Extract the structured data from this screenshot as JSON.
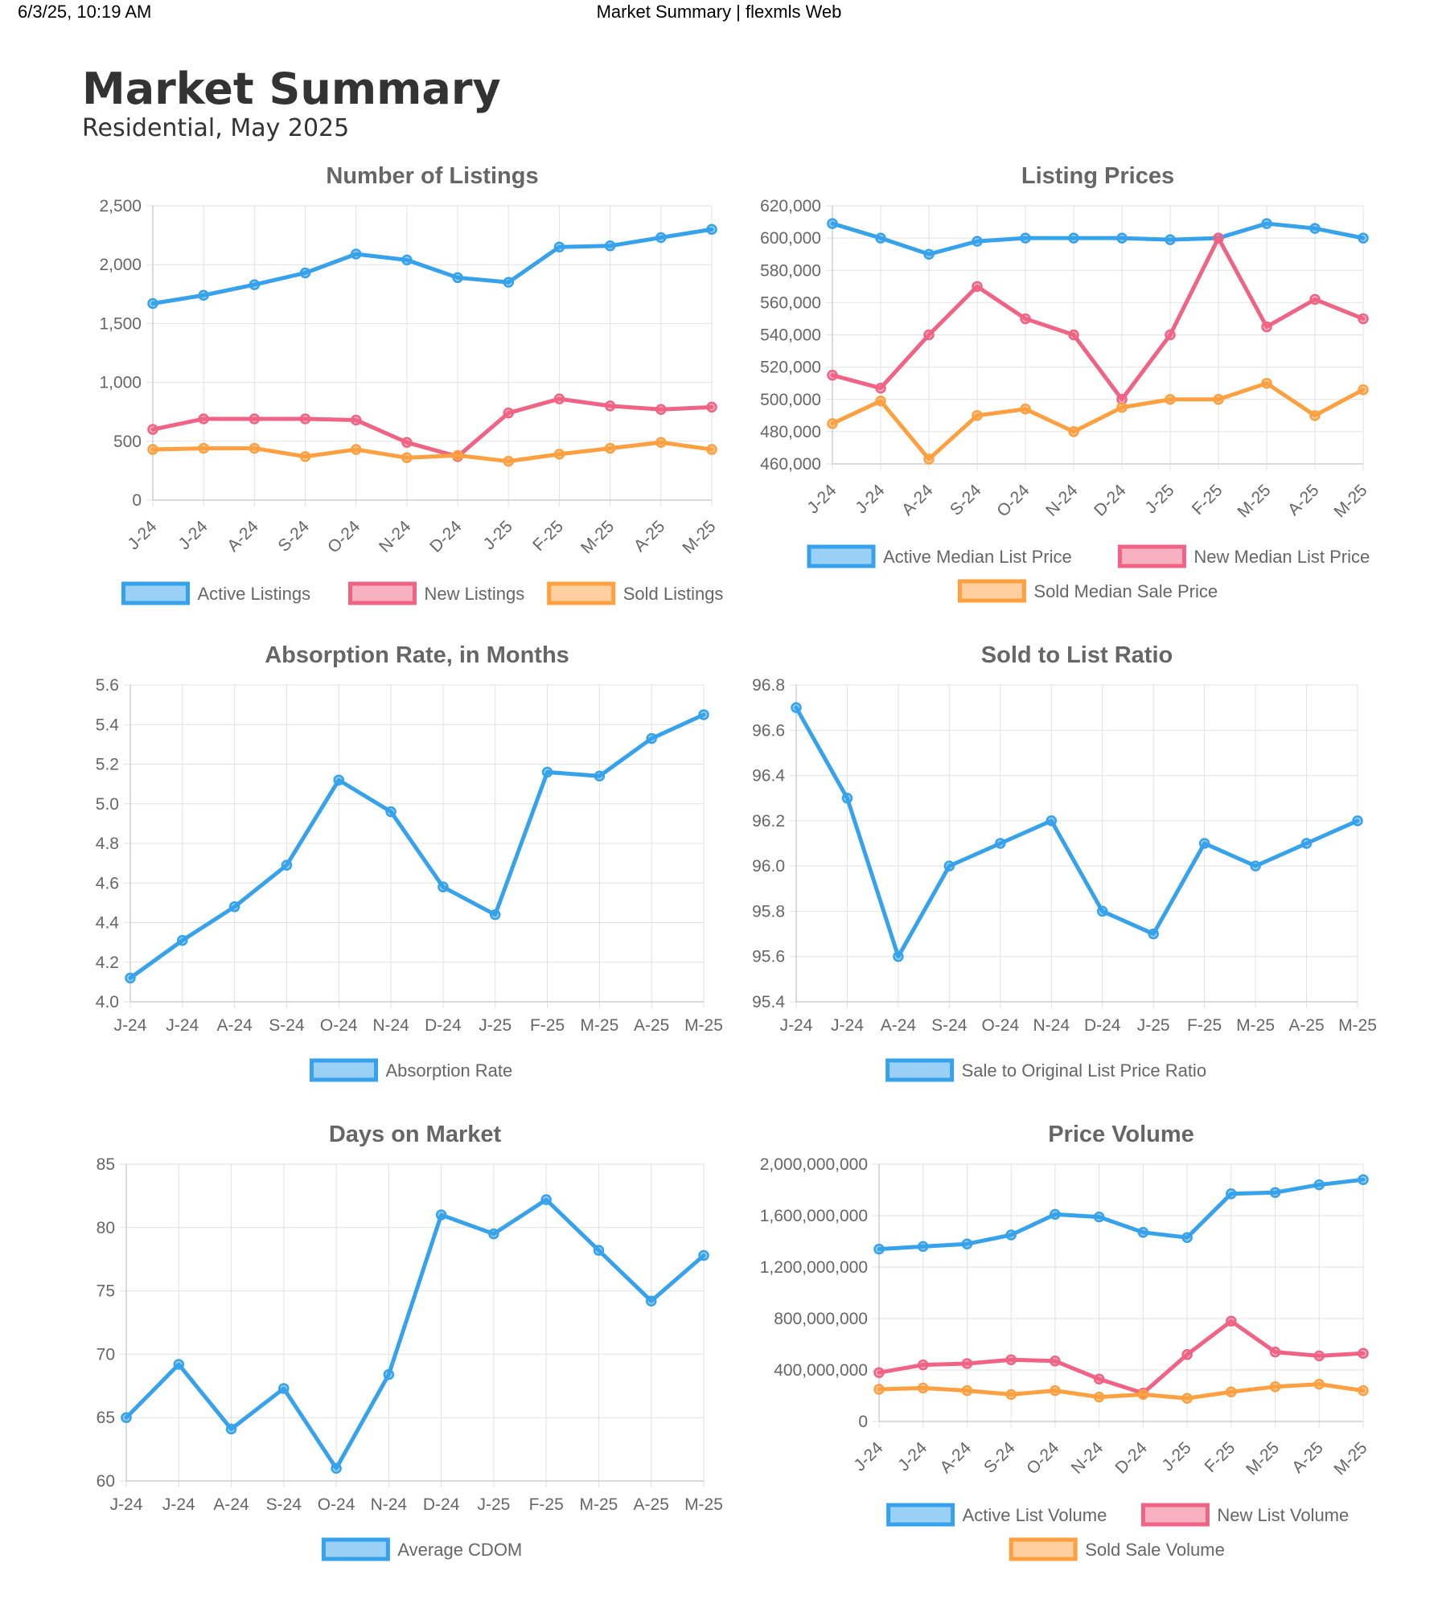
{
  "print_header": {
    "datetime": "6/3/25, 10:19 AM",
    "title": "Market Summary | flexmls Web"
  },
  "report": {
    "title": "Market Summary",
    "subtitle": "Residential, May 2025"
  },
  "colors": {
    "blue": "#36A2EB",
    "pink": "#F06384",
    "orange": "#FFA040"
  },
  "chart_data": [
    {
      "type": "line",
      "title": "Number of Listings",
      "categories": [
        "J-24",
        "J-24",
        "A-24",
        "S-24",
        "O-24",
        "N-24",
        "D-24",
        "J-25",
        "F-25",
        "M-25",
        "A-25",
        "M-25"
      ],
      "ylim": [
        0,
        2500
      ],
      "yticks": [
        0,
        500,
        1000,
        1500,
        2000,
        2500
      ],
      "tick_labels_rotated": true,
      "series": [
        {
          "name": "Active Listings",
          "color": "#36A2EB",
          "values": [
            1670,
            1740,
            1830,
            1930,
            2090,
            2040,
            1890,
            1850,
            2150,
            2160,
            2230,
            2300
          ]
        },
        {
          "name": "New Listings",
          "color": "#F06384",
          "values": [
            600,
            690,
            690,
            690,
            680,
            490,
            370,
            740,
            860,
            800,
            770,
            790
          ]
        },
        {
          "name": "Sold Listings",
          "color": "#FFA040",
          "values": [
            430,
            440,
            440,
            370,
            430,
            360,
            380,
            330,
            390,
            440,
            490,
            430
          ]
        }
      ],
      "legend": "bottom"
    },
    {
      "type": "line",
      "title": "Listing Prices",
      "categories": [
        "J-24",
        "J-24",
        "A-24",
        "S-24",
        "O-24",
        "N-24",
        "D-24",
        "J-25",
        "F-25",
        "M-25",
        "A-25",
        "M-25"
      ],
      "ylim": [
        460000,
        620000
      ],
      "yticks": [
        460000,
        480000,
        500000,
        520000,
        540000,
        560000,
        580000,
        600000,
        620000
      ],
      "tick_labels_rotated": true,
      "series": [
        {
          "name": "Active Median List Price",
          "color": "#36A2EB",
          "values": [
            609000,
            600000,
            590000,
            598000,
            600000,
            600000,
            600000,
            599000,
            600000,
            609000,
            606000,
            600000
          ]
        },
        {
          "name": "New Median List Price",
          "color": "#F06384",
          "values": [
            515000,
            507000,
            540000,
            570000,
            550000,
            540000,
            500000,
            540000,
            600000,
            545000,
            562000,
            550000
          ]
        },
        {
          "name": "Sold Median Sale Price",
          "color": "#FFA040",
          "values": [
            485000,
            499000,
            463000,
            490000,
            494000,
            480000,
            495000,
            500000,
            500000,
            510000,
            490000,
            506000
          ]
        }
      ],
      "legend": "bottom"
    },
    {
      "type": "line",
      "title": "Absorption Rate, in Months",
      "categories": [
        "J-24",
        "J-24",
        "A-24",
        "S-24",
        "O-24",
        "N-24",
        "D-24",
        "J-25",
        "F-25",
        "M-25",
        "A-25",
        "M-25"
      ],
      "ylim": [
        4.0,
        5.6
      ],
      "yticks": [
        4.0,
        4.2,
        4.4,
        4.6,
        4.8,
        5.0,
        5.2,
        5.4,
        5.6
      ],
      "tick_labels_rotated": false,
      "series": [
        {
          "name": "Absorption Rate",
          "color": "#36A2EB",
          "values": [
            4.12,
            4.31,
            4.48,
            4.69,
            5.12,
            4.96,
            4.58,
            4.44,
            5.16,
            5.14,
            5.33,
            5.45
          ]
        }
      ],
      "legend": "bottom"
    },
    {
      "type": "line",
      "title": "Sold to List Ratio",
      "categories": [
        "J-24",
        "J-24",
        "A-24",
        "S-24",
        "O-24",
        "N-24",
        "D-24",
        "J-25",
        "F-25",
        "M-25",
        "A-25",
        "M-25"
      ],
      "ylim": [
        95.4,
        96.8
      ],
      "yticks": [
        95.4,
        95.6,
        95.8,
        96.0,
        96.2,
        96.4,
        96.6,
        96.8
      ],
      "tick_labels_rotated": false,
      "series": [
        {
          "name": "Sale to Original List Price Ratio",
          "color": "#36A2EB",
          "values": [
            96.7,
            96.3,
            95.6,
            96.0,
            96.1,
            96.2,
            95.8,
            95.7,
            96.1,
            96.0,
            96.1,
            96.2
          ]
        }
      ],
      "legend": "bottom"
    },
    {
      "type": "line",
      "title": "Days on Market",
      "categories": [
        "J-24",
        "J-24",
        "A-24",
        "S-24",
        "O-24",
        "N-24",
        "D-24",
        "J-25",
        "F-25",
        "M-25",
        "A-25",
        "M-25"
      ],
      "ylim": [
        60,
        85
      ],
      "yticks": [
        60,
        65,
        70,
        75,
        80,
        85
      ],
      "tick_labels_rotated": false,
      "series": [
        {
          "name": "Average CDOM",
          "color": "#36A2EB",
          "values": [
            65,
            69.2,
            64.1,
            67.3,
            61,
            68.4,
            81,
            79.5,
            82.2,
            78.2,
            74.2,
            77.8
          ]
        }
      ],
      "legend": "bottom"
    },
    {
      "type": "line",
      "title": "Price Volume",
      "categories": [
        "J-24",
        "J-24",
        "A-24",
        "S-24",
        "O-24",
        "N-24",
        "D-24",
        "J-25",
        "F-25",
        "M-25",
        "A-25",
        "M-25"
      ],
      "ylim": [
        0,
        2000000000
      ],
      "yticks": [
        0,
        400000000,
        800000000,
        1200000000,
        1600000000,
        2000000000
      ],
      "tick_labels_rotated": true,
      "series": [
        {
          "name": "Active List Volume",
          "color": "#36A2EB",
          "values": [
            1340000000,
            1360000000,
            1380000000,
            1450000000,
            1610000000,
            1590000000,
            1470000000,
            1430000000,
            1770000000,
            1780000000,
            1840000000,
            1880000000
          ]
        },
        {
          "name": "New List Volume",
          "color": "#F06384",
          "values": [
            380000000,
            440000000,
            450000000,
            480000000,
            470000000,
            330000000,
            220000000,
            520000000,
            780000000,
            540000000,
            510000000,
            530000000
          ]
        },
        {
          "name": "Sold Sale Volume",
          "color": "#FFA040",
          "values": [
            250000000,
            260000000,
            240000000,
            210000000,
            240000000,
            190000000,
            210000000,
            180000000,
            230000000,
            270000000,
            290000000,
            240000000
          ]
        }
      ],
      "legend": "bottom"
    }
  ]
}
